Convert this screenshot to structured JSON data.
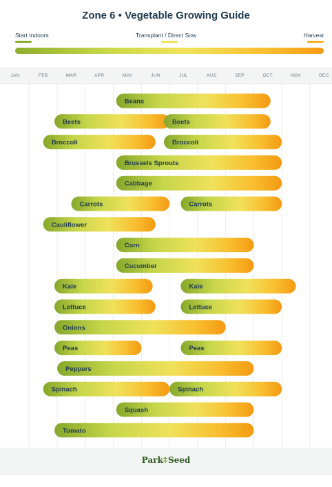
{
  "title": "Zone 6  •  Vegetable Growing Guide",
  "legend": {
    "start_indoors": "Start Indoors",
    "transplant": "Transplant / Direct Sow",
    "harvest": "Harvest",
    "colors": {
      "start": "#8dae2b",
      "mid": "#f1e35c",
      "end": "#f59a14"
    }
  },
  "months": [
    "JAN",
    "FEB",
    "MAR",
    "APR",
    "MAY",
    "JUN",
    "JUL",
    "AUG",
    "SEP",
    "OCT",
    "NOV",
    "DEC"
  ],
  "footer": {
    "logo_left": "Park",
    "logo_right": "Seed"
  },
  "chart_data": {
    "type": "bar",
    "orientation": "horizontal-gantt",
    "x_unit": "month (0 = start of January)",
    "xlim": [
      0,
      12
    ],
    "rows": [
      {
        "label": "Beans",
        "bars": [
          {
            "start": 3.6,
            "end": 9.1
          }
        ]
      },
      {
        "label": "Beets",
        "bars": [
          {
            "start": 1.4,
            "end": 5.5
          },
          {
            "start": 5.3,
            "end": 9.1
          }
        ]
      },
      {
        "label": "Broccoli",
        "bars": [
          {
            "start": 1.0,
            "end": 5.0
          },
          {
            "start": 5.3,
            "end": 9.5
          }
        ]
      },
      {
        "label": "Brussels Sprouts",
        "bars": [
          {
            "start": 3.6,
            "end": 9.5
          }
        ]
      },
      {
        "label": "Cabbage",
        "bars": [
          {
            "start": 3.6,
            "end": 9.5
          }
        ]
      },
      {
        "label": "Carrots",
        "bars": [
          {
            "start": 2.0,
            "end": 5.5
          },
          {
            "start": 5.9,
            "end": 9.5
          }
        ]
      },
      {
        "label": "Cauliflower",
        "bars": [
          {
            "start": 1.0,
            "end": 5.0
          }
        ]
      },
      {
        "label": "Corn",
        "bars": [
          {
            "start": 3.6,
            "end": 8.5
          }
        ]
      },
      {
        "label": "Cucumber",
        "bars": [
          {
            "start": 3.6,
            "end": 8.5
          }
        ]
      },
      {
        "label": "Kale",
        "bars": [
          {
            "start": 1.4,
            "end": 4.9
          },
          {
            "start": 5.9,
            "end": 10.0
          }
        ]
      },
      {
        "label": "Lettuce",
        "bars": [
          {
            "start": 1.4,
            "end": 5.0
          },
          {
            "start": 5.9,
            "end": 9.5
          }
        ]
      },
      {
        "label": "Onions",
        "bars": [
          {
            "start": 1.4,
            "end": 7.5
          }
        ]
      },
      {
        "label": "Peas",
        "bars": [
          {
            "start": 1.4,
            "end": 4.5
          },
          {
            "start": 5.9,
            "end": 9.5
          }
        ]
      },
      {
        "label": "Peppers",
        "bars": [
          {
            "start": 1.5,
            "end": 8.5
          }
        ]
      },
      {
        "label": "Spinach",
        "bars": [
          {
            "start": 1.0,
            "end": 5.5
          },
          {
            "start": 5.5,
            "end": 9.5
          }
        ]
      },
      {
        "label": "Squash",
        "bars": [
          {
            "start": 3.6,
            "end": 8.5
          }
        ]
      },
      {
        "label": "Tomato",
        "bars": [
          {
            "start": 1.4,
            "end": 8.5
          }
        ]
      }
    ]
  }
}
